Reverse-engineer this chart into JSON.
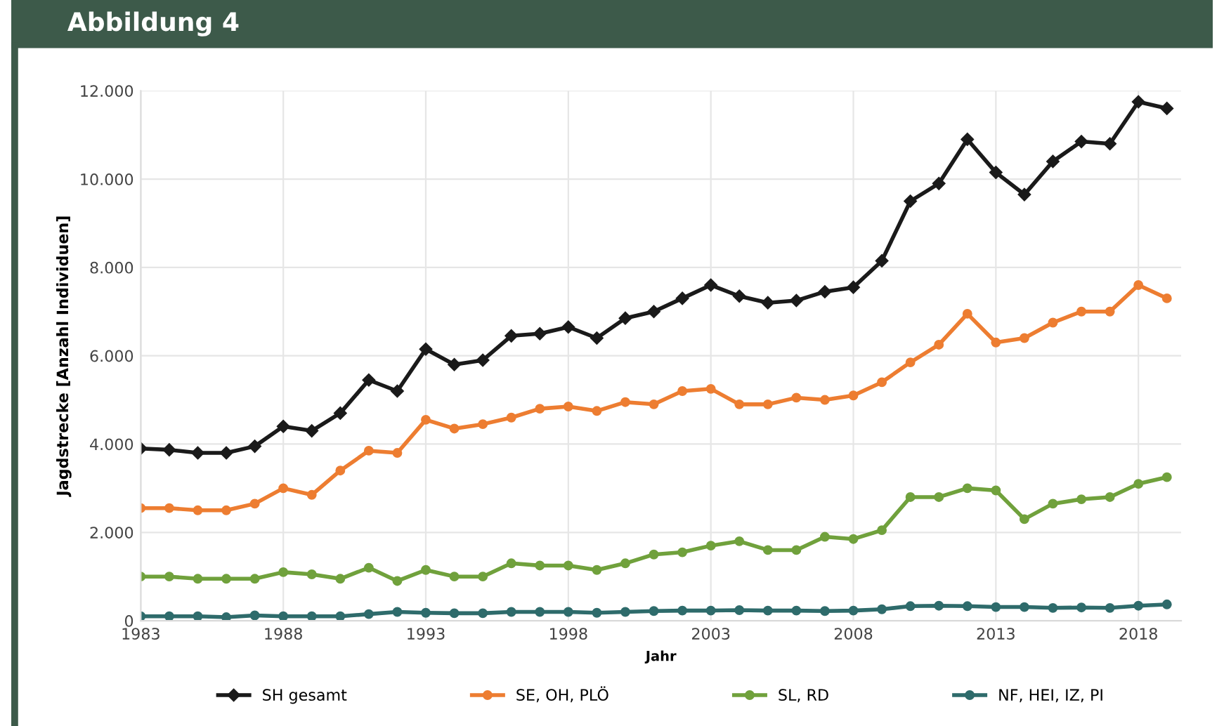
{
  "chart_data": {
    "type": "line",
    "title": "Abbildung 4",
    "xlabel": "Jahr",
    "ylabel": "Jagdstrecke [Anzahl Individuen]",
    "x": [
      1983,
      1984,
      1985,
      1986,
      1987,
      1988,
      1989,
      1990,
      1991,
      1992,
      1993,
      1994,
      1995,
      1996,
      1997,
      1998,
      1999,
      2000,
      2001,
      2002,
      2003,
      2004,
      2005,
      2006,
      2007,
      2008,
      2009,
      2010,
      2011,
      2012,
      2013,
      2014,
      2015,
      2016,
      2017,
      2018,
      2019
    ],
    "series": [
      {
        "name": "SH gesamt",
        "color": "#1a1a1a",
        "marker": "diamond",
        "values": [
          3900,
          3870,
          3800,
          3800,
          3950,
          4400,
          4300,
          4700,
          5450,
          5200,
          6150,
          5800,
          5900,
          6450,
          6500,
          6650,
          6400,
          6850,
          7000,
          7300,
          7600,
          7350,
          7200,
          7250,
          7450,
          7550,
          8150,
          9500,
          9900,
          10900,
          10150,
          9650,
          10400,
          10850,
          10800,
          11750,
          11600
        ]
      },
      {
        "name": "SE, OH, PLÖ",
        "color": "#ed7d31",
        "marker": "circle",
        "values": [
          2550,
          2550,
          2500,
          2500,
          2650,
          3000,
          2850,
          3400,
          3850,
          3800,
          4550,
          4350,
          4450,
          4600,
          4800,
          4850,
          4750,
          4950,
          4900,
          5200,
          5250,
          4900,
          4900,
          5050,
          5000,
          5100,
          5400,
          5850,
          6250,
          6950,
          6300,
          6400,
          6750,
          7000,
          7000,
          7600,
          7300
        ]
      },
      {
        "name": "SL, RD",
        "color": "#70a13c",
        "marker": "circle",
        "values": [
          1000,
          1000,
          950,
          950,
          950,
          1100,
          1050,
          950,
          1200,
          900,
          1150,
          1000,
          1000,
          1300,
          1250,
          1250,
          1150,
          1300,
          1500,
          1550,
          1700,
          1800,
          1600,
          1600,
          1900,
          1850,
          2050,
          2800,
          2800,
          3000,
          2950,
          2300,
          2650,
          2750,
          2800,
          3100,
          3250
        ]
      },
      {
        "name": "NF, HEI, IZ, PI",
        "color": "#2e6b6b",
        "marker": "circle",
        "values": [
          100,
          100,
          100,
          80,
          120,
          100,
          100,
          100,
          150,
          200,
          180,
          170,
          170,
          200,
          200,
          200,
          180,
          200,
          220,
          230,
          230,
          240,
          230,
          230,
          220,
          230,
          260,
          330,
          340,
          330,
          310,
          310,
          290,
          300,
          290,
          340,
          370
        ]
      }
    ],
    "xlim": [
      1983,
      2019.5
    ],
    "xticks": [
      1983,
      1988,
      1993,
      1998,
      2003,
      2008,
      2013,
      2018
    ],
    "ylim": [
      0,
      12000
    ],
    "yticks": [
      {
        "value": 0,
        "label": "0"
      },
      {
        "value": 2000,
        "label": "2.000"
      },
      {
        "value": 4000,
        "label": "4.000"
      },
      {
        "value": 6000,
        "label": "6.000"
      },
      {
        "value": 8000,
        "label": "8.000"
      },
      {
        "value": 10000,
        "label": "10.000"
      },
      {
        "value": 12000,
        "label": "12.000"
      }
    ],
    "grid": true,
    "legend": "bottom",
    "line_style": "solid"
  }
}
